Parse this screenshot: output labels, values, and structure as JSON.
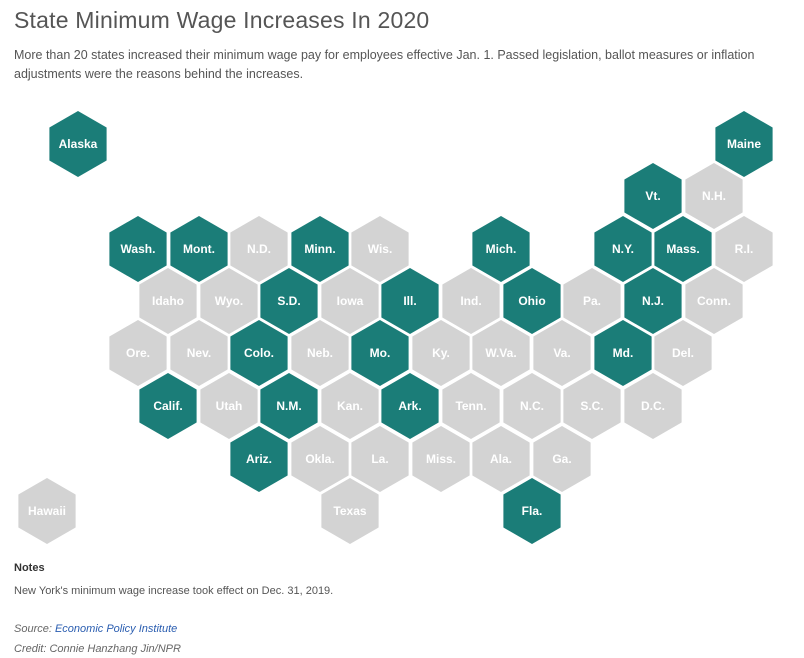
{
  "title": "State Minimum Wage Increases In 2020",
  "subtitle": "More than 20 states increased their minimum wage pay for employees effective Jan. 1. Passed legislation, ballot measures or inflation adjustments were the reasons behind the increases.",
  "colors": {
    "increase": "#1b7d78",
    "no_increase": "#d3d3d3"
  },
  "states": [
    {
      "label": "Alaska",
      "increased": true
    },
    {
      "label": "Maine",
      "increased": true
    },
    {
      "label": "Vt.",
      "increased": true
    },
    {
      "label": "N.H.",
      "increased": false
    },
    {
      "label": "Wash.",
      "increased": true
    },
    {
      "label": "Mont.",
      "increased": true
    },
    {
      "label": "N.D.",
      "increased": false
    },
    {
      "label": "Minn.",
      "increased": true
    },
    {
      "label": "Wis.",
      "increased": false
    },
    {
      "label": "Mich.",
      "increased": true
    },
    {
      "label": "N.Y.",
      "increased": true
    },
    {
      "label": "Mass.",
      "increased": true
    },
    {
      "label": "R.I.",
      "increased": false
    },
    {
      "label": "Idaho",
      "increased": false
    },
    {
      "label": "Wyo.",
      "increased": false
    },
    {
      "label": "S.D.",
      "increased": true
    },
    {
      "label": "Iowa",
      "increased": false
    },
    {
      "label": "Ill.",
      "increased": true
    },
    {
      "label": "Ind.",
      "increased": false
    },
    {
      "label": "Ohio",
      "increased": true
    },
    {
      "label": "Pa.",
      "increased": false
    },
    {
      "label": "N.J.",
      "increased": true
    },
    {
      "label": "Conn.",
      "increased": false
    },
    {
      "label": "Ore.",
      "increased": false
    },
    {
      "label": "Nev.",
      "increased": false
    },
    {
      "label": "Colo.",
      "increased": true
    },
    {
      "label": "Neb.",
      "increased": false
    },
    {
      "label": "Mo.",
      "increased": true
    },
    {
      "label": "Ky.",
      "increased": false
    },
    {
      "label": "W.Va.",
      "increased": false
    },
    {
      "label": "Va.",
      "increased": false
    },
    {
      "label": "Md.",
      "increased": true
    },
    {
      "label": "Del.",
      "increased": false
    },
    {
      "label": "Calif.",
      "increased": true
    },
    {
      "label": "Utah",
      "increased": false
    },
    {
      "label": "N.M.",
      "increased": true
    },
    {
      "label": "Kan.",
      "increased": false
    },
    {
      "label": "Ark.",
      "increased": true
    },
    {
      "label": "Tenn.",
      "increased": false
    },
    {
      "label": "N.C.",
      "increased": false
    },
    {
      "label": "S.C.",
      "increased": false
    },
    {
      "label": "D.C.",
      "increased": false
    },
    {
      "label": "Ariz.",
      "increased": true
    },
    {
      "label": "Okla.",
      "increased": false
    },
    {
      "label": "La.",
      "increased": false
    },
    {
      "label": "Miss.",
      "increased": false
    },
    {
      "label": "Ala.",
      "increased": false
    },
    {
      "label": "Ga.",
      "increased": false
    },
    {
      "label": "Hawaii",
      "increased": false
    },
    {
      "label": "Texas",
      "increased": false
    },
    {
      "label": "Fla.",
      "increased": true
    }
  ],
  "notes": {
    "heading": "Notes",
    "text": "New York's minimum wage increase took effect on Dec. 31, 2019."
  },
  "source": {
    "prefix": "Source: ",
    "link_text": "Economic Policy Institute"
  },
  "credit": "Credit: Connie Hanzhang Jin/NPR"
}
